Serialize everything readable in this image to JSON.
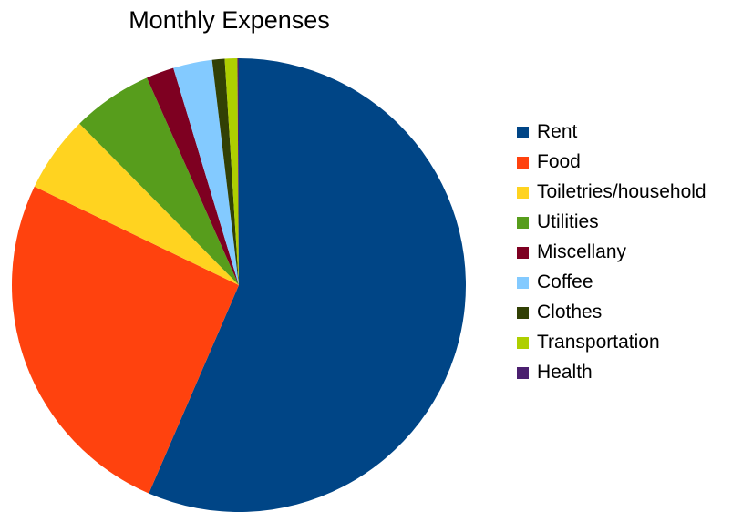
{
  "chart_data": {
    "type": "pie",
    "title": "Monthly Expenses",
    "legend_position": "right",
    "start_angle": "top",
    "direction": "clockwise",
    "slices": [
      {
        "label": "Rent",
        "value": 57.0,
        "color": "#004586"
      },
      {
        "label": "Food",
        "value": 25.9,
        "color": "#ff420e"
      },
      {
        "label": "Toiletries/household",
        "value": 5.5,
        "color": "#ffd320"
      },
      {
        "label": "Utilities",
        "value": 5.8,
        "color": "#579d1c"
      },
      {
        "label": "Miscellany",
        "value": 2.0,
        "color": "#7e0021"
      },
      {
        "label": "Coffee",
        "value": 2.8,
        "color": "#83caff"
      },
      {
        "label": "Clothes",
        "value": 0.9,
        "color": "#314004"
      },
      {
        "label": "Transportation",
        "value": 0.9,
        "color": "#aecf00"
      },
      {
        "label": "Health",
        "value": 0.1,
        "color": "#4b1f6f"
      }
    ]
  }
}
